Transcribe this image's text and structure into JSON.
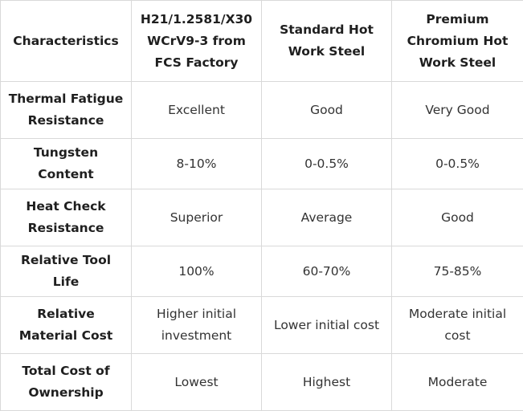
{
  "table": {
    "headers": [
      "Characteristics",
      "H21/1.2581/X30 WCrV9-3 from FCS Factory",
      "Standard Hot Work Steel",
      "Premium Chromium Hot Work Steel"
    ],
    "rows": [
      {
        "label": "Thermal Fatigue Resistance",
        "values": [
          "Excellent",
          "Good",
          "Very Good"
        ]
      },
      {
        "label": "Tungsten Content",
        "values": [
          "8-10%",
          "0-0.5%",
          "0-0.5%"
        ]
      },
      {
        "label": "Heat Check Resistance",
        "values": [
          "Superior",
          "Average",
          "Good"
        ]
      },
      {
        "label": "Relative Tool Life",
        "values": [
          "100%",
          "60-70%",
          "75-85%"
        ]
      },
      {
        "label": "Relative Material Cost",
        "values": [
          "Higher initial investment",
          "Lower initial cost",
          "Moderate initial cost"
        ]
      },
      {
        "label": "Total Cost of Ownership",
        "values": [
          "Lowest",
          "Highest",
          "Moderate"
        ]
      }
    ]
  }
}
